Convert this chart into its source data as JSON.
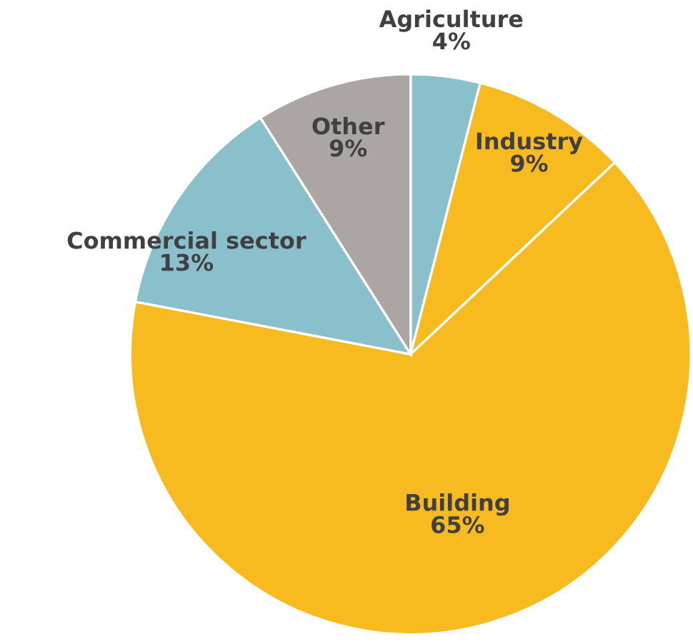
{
  "chart_data": {
    "type": "pie",
    "categories": [
      "Agriculture",
      "Industry",
      "Building",
      "Commercial sector",
      "Other"
    ],
    "values": [
      4,
      9,
      65,
      13,
      9
    ],
    "value_labels": [
      "4%",
      "9%",
      "65%",
      "13%",
      "9%"
    ],
    "colors": [
      "#8ac0cb",
      "#f7bb1f",
      "#f7bb1f",
      "#8ac0cb",
      "#aba5a3"
    ],
    "legend": false
  }
}
